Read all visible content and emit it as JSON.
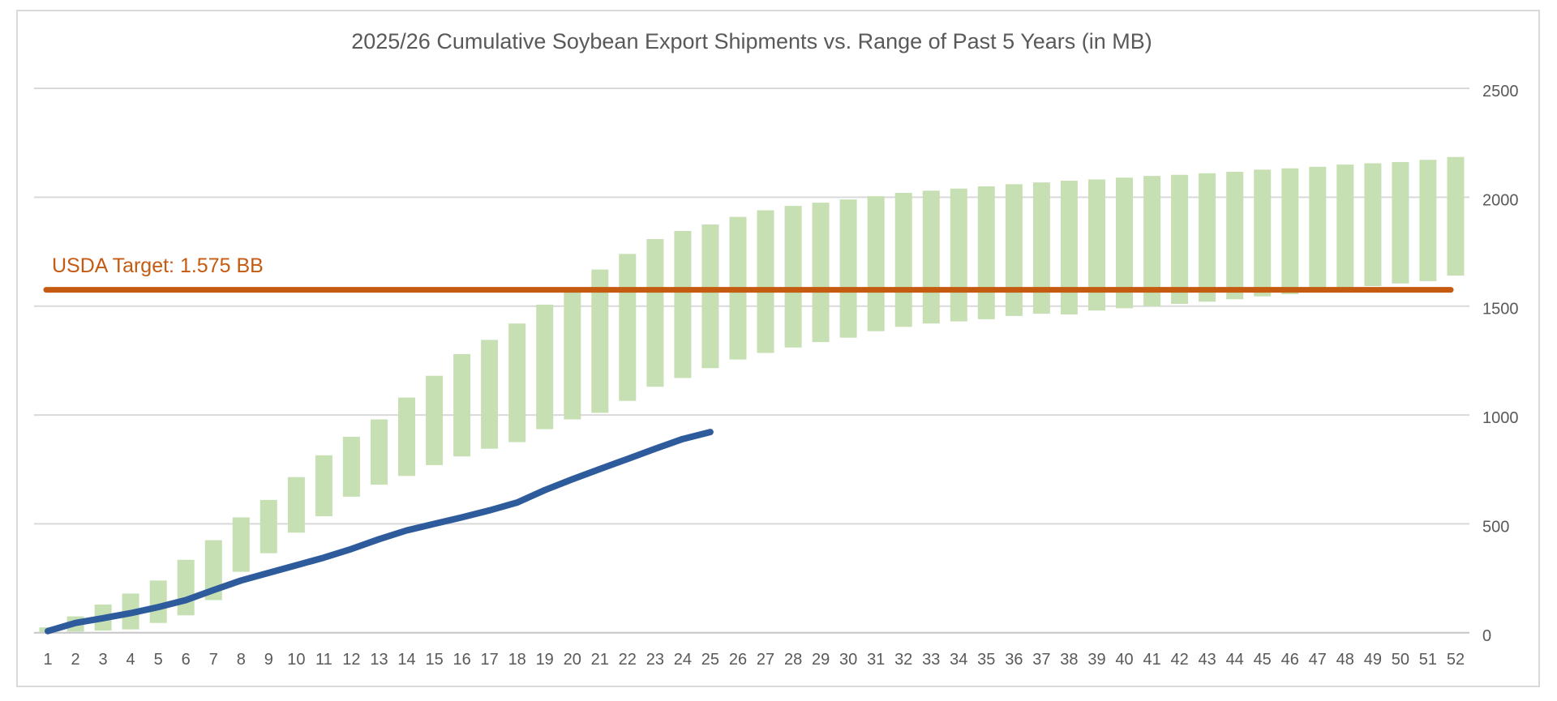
{
  "chart_data": {
    "type": "bar",
    "subtype": "floating-range-columns-with-line-overlay",
    "title": "2025/26 Cumulative Soybean Export Shipments vs. Range of Past 5 Years (in MB)",
    "xlabel": "",
    "ylabel": "",
    "x_categories": [
      "1",
      "2",
      "3",
      "4",
      "5",
      "6",
      "7",
      "8",
      "9",
      "10",
      "11",
      "12",
      "13",
      "14",
      "15",
      "16",
      "17",
      "18",
      "19",
      "20",
      "21",
      "22",
      "23",
      "24",
      "25",
      "26",
      "27",
      "28",
      "29",
      "30",
      "31",
      "32",
      "33",
      "34",
      "35",
      "36",
      "37",
      "38",
      "39",
      "40",
      "41",
      "42",
      "43",
      "44",
      "45",
      "46",
      "47",
      "48",
      "49",
      "50",
      "51",
      "52"
    ],
    "y_ticks": [
      0,
      500,
      1000,
      1500,
      2000,
      2500
    ],
    "ylim": [
      0,
      2500
    ],
    "grid": "horizontal",
    "y_axis_side": "right",
    "legend": "none",
    "series": [
      {
        "name": "Range of Past 5 Years",
        "type": "column-range",
        "color": "#c6e0b4",
        "min": [
          2,
          5,
          10,
          15,
          45,
          80,
          150,
          280,
          365,
          460,
          535,
          625,
          680,
          720,
          770,
          810,
          845,
          875,
          935,
          980,
          1010,
          1065,
          1130,
          1170,
          1215,
          1255,
          1285,
          1310,
          1335,
          1355,
          1385,
          1405,
          1420,
          1430,
          1440,
          1455,
          1465,
          1462,
          1480,
          1490,
          1500,
          1510,
          1520,
          1532,
          1545,
          1555,
          1567,
          1577,
          1592,
          1604,
          1615,
          1640
        ],
        "max": [
          25,
          75,
          130,
          180,
          240,
          335,
          425,
          530,
          610,
          715,
          815,
          900,
          980,
          1080,
          1180,
          1280,
          1345,
          1420,
          1507,
          1565,
          1668,
          1740,
          1808,
          1845,
          1875,
          1910,
          1940,
          1960,
          1975,
          1990,
          2005,
          2020,
          2030,
          2040,
          2050,
          2060,
          2068,
          2076,
          2082,
          2090,
          2098,
          2103,
          2110,
          2117,
          2127,
          2133,
          2140,
          2150,
          2156,
          2162,
          2172,
          2185
        ]
      },
      {
        "name": "2025/26 Cumulative Shipments",
        "type": "line",
        "color": "#2e5b9c",
        "values": [
          8,
          45,
          67,
          90,
          118,
          150,
          196,
          240,
          275,
          310,
          345,
          385,
          430,
          470,
          500,
          530,
          562,
          598,
          655,
          705,
          752,
          798,
          845,
          890,
          922
        ]
      },
      {
        "name": "USDA Target",
        "type": "reference-line",
        "color": "#c55a11",
        "value": 1575,
        "label": "USDA Target: 1.575 BB"
      }
    ]
  },
  "colors": {
    "background": "#ffffff",
    "frame_border": "#d9d9d9",
    "gridline": "#d9d9d9",
    "axis_line": "#c6c6c6",
    "title_text": "#595959",
    "tick_text": "#595959",
    "range_bar": "#c6e0b4",
    "current_line": "#2e5b9c",
    "target_line": "#c55a11"
  }
}
